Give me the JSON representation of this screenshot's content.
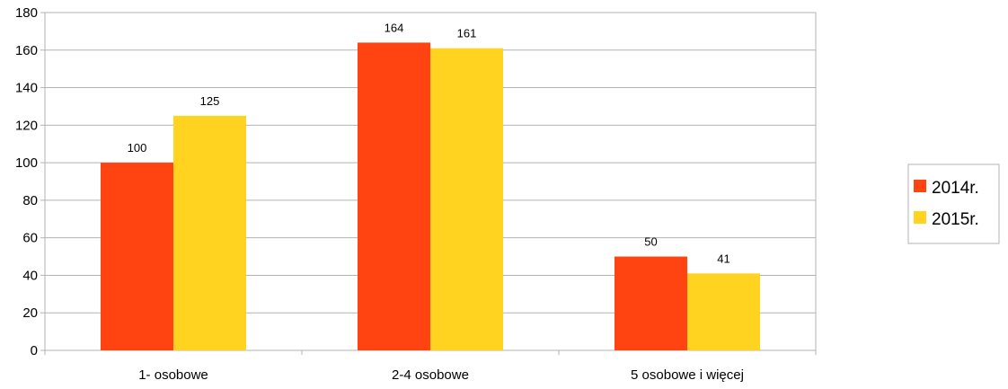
{
  "chart_data": {
    "type": "bar",
    "categories": [
      "1- osobowe",
      "2-4 osobowe",
      "5 osobowe i więcej"
    ],
    "series": [
      {
        "name": "2014r.",
        "values": [
          100,
          164,
          50
        ],
        "color": "#ff4411"
      },
      {
        "name": "2015r.",
        "values": [
          125,
          161,
          41
        ],
        "color": "#ffd320"
      }
    ],
    "title": "",
    "xlabel": "",
    "ylabel": "",
    "ylim": [
      0,
      180
    ],
    "y_ticks": [
      0,
      20,
      40,
      60,
      80,
      100,
      120,
      140,
      160,
      180
    ],
    "grid": true,
    "legend_position": "right",
    "data_labels": true
  }
}
